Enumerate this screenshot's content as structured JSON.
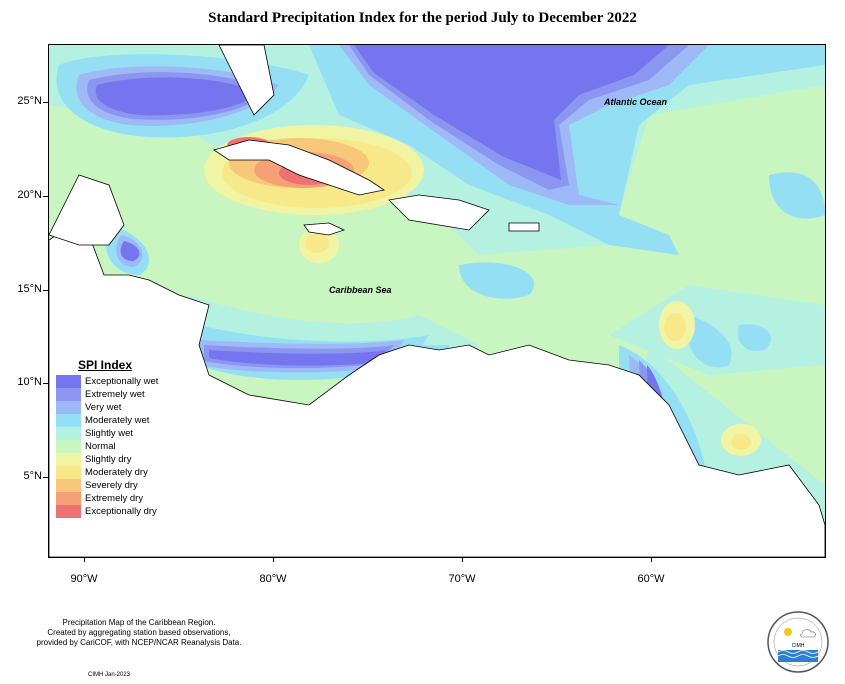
{
  "title": "Standard Precipitation Index for the period July to December 2022",
  "map": {
    "labels": {
      "atlantic": "Atlantic Ocean",
      "caribbean": "Caribbean Sea"
    },
    "lat_ticks": [
      "25°N",
      "20°N",
      "15°N",
      "10°N",
      "5°N"
    ],
    "lon_ticks": [
      "90°W",
      "80°W",
      "70°W",
      "60°W"
    ],
    "background_class": "Normal"
  },
  "legend": {
    "title": "SPI Index",
    "items": [
      {
        "label": "Exceptionally wet",
        "color": "#7575ef"
      },
      {
        "label": "Extremely wet",
        "color": "#8a96ef"
      },
      {
        "label": "Very wet",
        "color": "#9fb9f7"
      },
      {
        "label": "Moderately wet",
        "color": "#95dff5"
      },
      {
        "label": "Slightly wet",
        "color": "#b5f1e1"
      },
      {
        "label": "Normal",
        "color": "#c9f5c1"
      },
      {
        "label": "Slightly dry",
        "color": "#f1f5a3"
      },
      {
        "label": "Moderately dry",
        "color": "#f7e98a"
      },
      {
        "label": "Severely dry",
        "color": "#f7c77a"
      },
      {
        "label": "Extremely dry",
        "color": "#f5a076"
      },
      {
        "label": "Exceptionally dry",
        "color": "#ef7272"
      }
    ]
  },
  "footnote": {
    "line1": "Precipitation Map of the Caribbean Region.",
    "line2": "Created by aggregating station based observations,",
    "line3": "provided by CariCOF, with NCEP/NCAR Reanalysis Data."
  },
  "credit": "CIMH Jan-2023",
  "logo": {
    "name": "cimh-logo",
    "text": "CIMH"
  }
}
